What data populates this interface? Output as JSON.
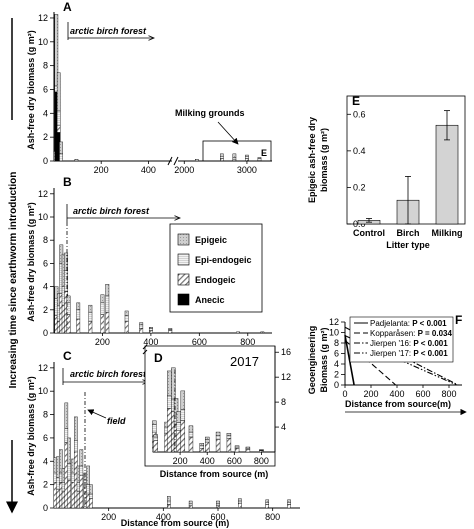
{
  "figure": {
    "side_label": "Increasing time since earthworm introduction",
    "legend": {
      "items": [
        {
          "label": "Epigeic",
          "pattern": "epigeic"
        },
        {
          "label": "Epi-endogeic",
          "pattern": "epiendo"
        },
        {
          "label": "Endogeic",
          "pattern": "endo"
        },
        {
          "label": "Anecic",
          "pattern": "anecic"
        }
      ]
    },
    "colors": {
      "epigeic": "#cfcfcf",
      "epiendo": "#f2f2f2",
      "endo_hatch": "#707070",
      "anecic": "#000000",
      "bar_E": "#d3d3d3"
    }
  },
  "chart_data": [
    {
      "panel": "A",
      "type": "bar",
      "stacked": true,
      "ylabel": "Ash-free dry biomass (g m²)",
      "xlabel": "",
      "y_ticks": [
        "0",
        "2",
        "4",
        "6",
        "8",
        "10",
        "12"
      ],
      "ylim": [
        0,
        12.5
      ],
      "x_ticks": [
        "200",
        "400",
        "2000",
        "3000"
      ],
      "x_axis_break": "between 400 and 2000",
      "annotation": "arctic birch forest",
      "inset_label": "Milking grounds",
      "inset_letter": "E",
      "samples": [
        {
          "x": 5,
          "anecic": 0,
          "endo": 0,
          "epiendo": 0,
          "epigeic": 0.8
        },
        {
          "x": 10,
          "anecic": 5.8,
          "endo": 0,
          "epiendo": 0.5,
          "epigeic": 6.0
        },
        {
          "x": 20,
          "anecic": 2.4,
          "endo": 0.6,
          "epiendo": 1.2,
          "epigeic": 3.2
        },
        {
          "x": 30,
          "anecic": 0,
          "endo": 0,
          "epiendo": 0.6,
          "epigeic": 1.0
        },
        {
          "x": 95,
          "anecic": 0,
          "endo": 0,
          "epiendo": 0,
          "epigeic": 0.15
        },
        {
          "x": 2200,
          "anecic": 0,
          "endo": 0,
          "epiendo": 0,
          "epigeic": 0.15
        },
        {
          "x": 2600,
          "anecic": 0,
          "endo": 0.2,
          "epiendo": 0.2,
          "epigeic": 0.2
        },
        {
          "x": 2800,
          "anecic": 0,
          "endo": 0.1,
          "epiendo": 0.2,
          "epigeic": 0.3
        },
        {
          "x": 3000,
          "anecic": 0,
          "endo": 0.2,
          "epiendo": 0.2,
          "epigeic": 0.1
        },
        {
          "x": 3200,
          "anecic": 0,
          "endo": 0,
          "epiendo": 0.2,
          "epigeic": 0.1
        }
      ]
    },
    {
      "panel": "B",
      "type": "bar",
      "stacked": true,
      "ylabel": "Ash-free dry biomass (g m²)",
      "xlabel": "",
      "y_ticks": [
        "0",
        "2",
        "4",
        "6",
        "8",
        "10",
        "12"
      ],
      "ylim": [
        0,
        12.5
      ],
      "x_ticks": [
        "200",
        "400",
        "600",
        "800"
      ],
      "xlim": [
        0,
        900
      ],
      "annotation": "arctic birch forest",
      "samples": [
        {
          "x": 10,
          "endo": 1.5,
          "epiendo": 1.5,
          "epigeic": 1.0
        },
        {
          "x": 20,
          "endo": 1.0,
          "epiendo": 1.4,
          "epigeic": 1.0
        },
        {
          "x": 30,
          "endo": 3.4,
          "epiendo": 2.6,
          "epigeic": 1.6
        },
        {
          "x": 40,
          "endo": 2.4,
          "epiendo": 1.6,
          "epigeic": 2.8
        },
        {
          "x": 50,
          "endo": 3.6,
          "epiendo": 1.8,
          "epigeic": 1.5
        },
        {
          "x": 60,
          "endo": 1.6,
          "epiendo": 1.0,
          "epigeic": 0.6
        },
        {
          "x": 100,
          "endo": 1.2,
          "epiendo": 0.8,
          "epigeic": 0.6
        },
        {
          "x": 150,
          "endo": 1.0,
          "epiendo": 0.8,
          "epigeic": 0.6
        },
        {
          "x": 200,
          "endo": 1.6,
          "epiendo": 1.0,
          "epigeic": 0.7
        },
        {
          "x": 220,
          "endo": 1.8,
          "epiendo": 1.4,
          "epigeic": 1.0
        },
        {
          "x": 300,
          "endo": 1.0,
          "epiendo": 0.5,
          "epigeic": 0.4
        },
        {
          "x": 360,
          "endo": 0.4,
          "epiendo": 0.3,
          "epigeic": 0.2
        },
        {
          "x": 400,
          "endo": 0.2,
          "epiendo": 0.2,
          "epigeic": 0.1
        },
        {
          "x": 480,
          "endo": 0.2,
          "epiendo": 0.1,
          "epigeic": 0.1
        },
        {
          "x": 760,
          "endo": 0.1,
          "epiendo": 0,
          "epigeic": 0
        },
        {
          "x": 860,
          "endo": 0.1,
          "epiendo": 0,
          "epigeic": 0
        }
      ]
    },
    {
      "panel": "C",
      "type": "bar",
      "stacked": true,
      "ylabel": "Ash-free dry biomass (g m²)",
      "xlabel": "Distance from source (m)",
      "y_ticks": [
        "0",
        "2",
        "4",
        "6",
        "8",
        "10",
        "12"
      ],
      "ylim": [
        0,
        12.5
      ],
      "x_ticks": [
        "200",
        "400",
        "600",
        "800"
      ],
      "xlim": [
        0,
        900
      ],
      "annotations": [
        "arctic birch forest",
        "field"
      ],
      "samples": [
        {
          "x": 5,
          "endo": 2.2,
          "epiendo": 0.8,
          "epigeic": 1.3
        },
        {
          "x": 15,
          "endo": 1.6,
          "epiendo": 1.0,
          "epigeic": 1.8
        },
        {
          "x": 25,
          "endo": 2.2,
          "epiendo": 0.8,
          "epigeic": 2.0
        },
        {
          "x": 35,
          "endo": 1.4,
          "epiendo": 0.8,
          "epigeic": 1.2
        },
        {
          "x": 45,
          "endo": 5.6,
          "epiendo": 1.2,
          "epigeic": 2.2
        },
        {
          "x": 55,
          "endo": 2.4,
          "epiendo": 1.4,
          "epigeic": 2.2
        },
        {
          "x": 70,
          "endo": 2.2,
          "epiendo": 0.8,
          "epigeic": 1.2
        },
        {
          "x": 80,
          "endo": 4.8,
          "epiendo": 1.0,
          "epigeic": 2.0
        },
        {
          "x": 90,
          "endo": 1.4,
          "epiendo": 0.8,
          "epigeic": 1.4
        },
        {
          "x": 100,
          "endo": 2.8,
          "epiendo": 0.8,
          "epigeic": 1.4
        },
        {
          "x": 115,
          "endo": 1.8,
          "epiendo": 0.6,
          "epigeic": 0.6
        },
        {
          "x": 125,
          "endo": 1.2,
          "epiendo": 0.8,
          "epigeic": 1.6
        },
        {
          "x": 135,
          "endo": 0.8,
          "epiendo": 0.4,
          "epigeic": 0.8
        },
        {
          "x": 420,
          "endo": 0.3,
          "epiendo": 0.3,
          "epigeic": 0.4
        },
        {
          "x": 500,
          "endo": 0.2,
          "epiendo": 0.2,
          "epigeic": 0.2
        },
        {
          "x": 600,
          "endo": 0.2,
          "epiendo": 0.2,
          "epigeic": 0.2
        },
        {
          "x": 680,
          "endo": 0.4,
          "epiendo": 0.2,
          "epigeic": 0.2
        },
        {
          "x": 780,
          "endo": 0.3,
          "epiendo": 0.2,
          "epigeic": 0.2
        },
        {
          "x": 860,
          "endo": 0.3,
          "epiendo": 0.2,
          "epigeic": 0.2
        }
      ]
    },
    {
      "panel": "D",
      "type": "bar",
      "stacked": true,
      "title": "2017",
      "xlabel": "Distance from source (m)",
      "y_ticks": [
        "4",
        "8",
        "12",
        "16"
      ],
      "ylim": [
        0,
        17
      ],
      "x_ticks": [
        "200",
        "400",
        "600",
        "800"
      ],
      "xlim": [
        0,
        900
      ],
      "samples": [
        {
          "x": 10,
          "endo": 3.2,
          "epiendo": 1.2,
          "epigeic": 0.6
        },
        {
          "x": 20,
          "endo": 1.8,
          "epiendo": 0.6,
          "epigeic": 0.4
        },
        {
          "x": 100,
          "endo": 3.0,
          "epiendo": 1.0,
          "epigeic": 0.8
        },
        {
          "x": 120,
          "endo": 7.0,
          "epiendo": 2.0,
          "epigeic": 4.0
        },
        {
          "x": 150,
          "endo": 6.5,
          "epiendo": 2.0,
          "epigeic": 5.0
        },
        {
          "x": 170,
          "endo": 4.5,
          "epiendo": 1.6,
          "epigeic": 2.5
        },
        {
          "x": 190,
          "endo": 3.5,
          "epiendo": 1.2,
          "epigeic": 1.8
        },
        {
          "x": 220,
          "endo": 5.0,
          "epiendo": 1.8,
          "epigeic": 3.0
        },
        {
          "x": 280,
          "endo": 2.4,
          "epiendo": 0.8,
          "epigeic": 1.0
        },
        {
          "x": 360,
          "endo": 0.6,
          "epiendo": 0.4,
          "epigeic": 0.4
        },
        {
          "x": 400,
          "endo": 1.6,
          "epiendo": 0.4,
          "epigeic": 0.4
        },
        {
          "x": 480,
          "endo": 2.0,
          "epiendo": 0.6,
          "epigeic": 0.6
        },
        {
          "x": 560,
          "endo": 2.2,
          "epiendo": 0.4,
          "epigeic": 0.4
        },
        {
          "x": 620,
          "endo": 0.6,
          "epiendo": 0.2,
          "epigeic": 0.2
        },
        {
          "x": 700,
          "endo": 0.4,
          "epiendo": 0.2,
          "epigeic": 0.2
        },
        {
          "x": 800,
          "endo": 0.2,
          "epiendo": 0.1,
          "epigeic": 0.1
        }
      ]
    },
    {
      "panel": "E",
      "type": "bar",
      "ylabel": "Epigeic ash-free dry biomass (g m²)",
      "xlabel": "Litter type",
      "categories": [
        "Control",
        "Birch",
        "Milking"
      ],
      "values": [
        0.02,
        0.13,
        0.54
      ],
      "errors": [
        0.01,
        0.13,
        0.08
      ],
      "y_ticks": [
        "0.0",
        "0.2",
        "0.4",
        "0.6"
      ],
      "ylim": [
        0,
        0.7
      ]
    },
    {
      "panel": "F",
      "type": "line",
      "ylabel": "Geoengineering Biomass (g m²)",
      "xlabel": "Distance from source(m)",
      "y_ticks": [
        "0",
        "2",
        "4",
        "6",
        "8",
        "10",
        "12"
      ],
      "ylim": [
        0,
        12
      ],
      "x_ticks": [
        "0",
        "200",
        "400",
        "600",
        "800"
      ],
      "xlim": [
        0,
        900
      ],
      "series": [
        {
          "name": "Padjelanta",
          "pvalue": "P < 0.001",
          "style": "solid",
          "x": [
            0,
            70
          ],
          "y": [
            9.5,
            0
          ]
        },
        {
          "name": "Kopparåsen",
          "pvalue": "P = 0.034",
          "style": "dashed",
          "x": [
            0,
            390
          ],
          "y": [
            8.5,
            0
          ]
        },
        {
          "name": "Jierpen '16",
          "pvalue": "P < 0.001",
          "style": "dashdot",
          "x": [
            0,
            870
          ],
          "y": [
            11.0,
            0
          ]
        },
        {
          "name": "Jierpen '17",
          "pvalue": "P < 0.001",
          "style": "dashdotdot",
          "x": [
            0,
            860
          ],
          "y": [
            9.4,
            0
          ]
        }
      ]
    }
  ]
}
